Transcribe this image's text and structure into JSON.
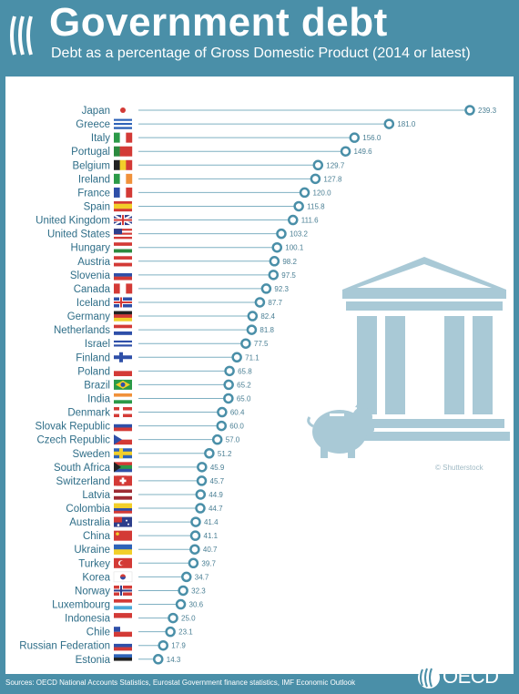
{
  "header": {
    "title": "Government debt",
    "subtitle": "Debt as a percentage of Gross Domestic Product (2014 or latest)"
  },
  "footer": {
    "source": "Sources: OECD National Accounts Statistics, Eurostat Government finance statistics, IMF Economic Outlook",
    "logo_text": "OECD",
    "copyright": "© Shutterstock"
  },
  "colors": {
    "brand": "#4a8fa8",
    "marker": "#4a8fa8",
    "line": "#7fb0c2",
    "illustration": "#a9c9d6"
  },
  "chart_data": {
    "type": "lollipop",
    "title": "Government debt",
    "subtitle": "Debt as a percentage of Gross Domestic Product (2014 or latest)",
    "xlabel": "",
    "ylabel": "",
    "xlim": [
      0,
      245
    ],
    "grid": false,
    "categories": [
      "Japan",
      "Greece",
      "Italy",
      "Portugal",
      "Belgium",
      "Ireland",
      "France",
      "Spain",
      "United Kingdom",
      "United States",
      "Hungary",
      "Austria",
      "Slovenia",
      "Canada",
      "Iceland",
      "Germany",
      "Netherlands",
      "Israel",
      "Finland",
      "Poland",
      "Brazil",
      "India",
      "Denmark",
      "Slovak Republic",
      "Czech Republic",
      "Sweden",
      "South Africa",
      "Switzerland",
      "Latvia",
      "Colombia",
      "Australia",
      "China",
      "Ukraine",
      "Turkey",
      "Korea",
      "Norway",
      "Luxembourg",
      "Indonesia",
      "Chile",
      "Russian Federation",
      "Estonia"
    ],
    "values": [
      239.3,
      181.0,
      156.0,
      149.6,
      129.7,
      127.8,
      120.0,
      115.8,
      111.6,
      103.2,
      100.1,
      98.2,
      97.5,
      92.3,
      87.7,
      82.4,
      81.8,
      77.5,
      71.1,
      65.8,
      65.2,
      65.0,
      60.4,
      60.0,
      57.0,
      51.2,
      45.9,
      45.7,
      44.9,
      44.7,
      41.4,
      41.1,
      40.7,
      39.7,
      34.7,
      32.3,
      30.6,
      25.0,
      23.1,
      17.9,
      14.3
    ],
    "value_labels": [
      "239.3",
      "181.0",
      "156.0",
      "149.6",
      "129.7",
      "127.8",
      "120.0",
      "115.8",
      "111.6",
      "103.2",
      "100.1",
      "98.2",
      "97.5",
      "92.3",
      "87.7",
      "82.4",
      "81.8",
      "77.5",
      "71.1",
      "65.8",
      "65.2",
      "65.0",
      "60.4",
      "60.0",
      "57.0",
      "51.2",
      "45.9",
      "45.7",
      "44.9",
      "44.7",
      "41.4",
      "41.1",
      "40.7",
      "39.7",
      "34.7",
      "32.3",
      "30.6",
      "25.0",
      "23.1",
      "17.9",
      "14.3"
    ]
  }
}
